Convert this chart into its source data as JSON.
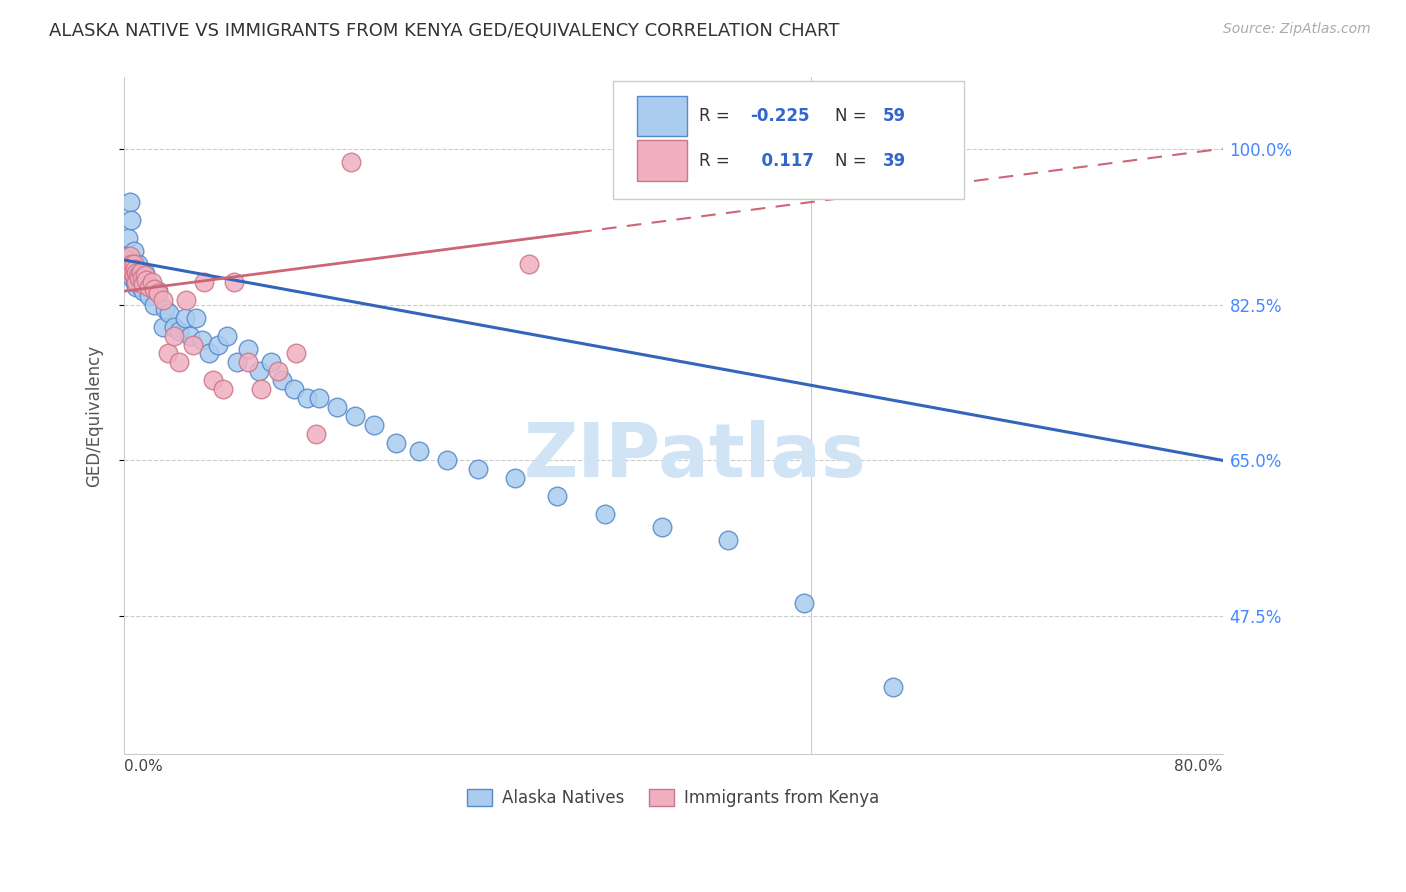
{
  "title": "ALASKA NATIVE VS IMMIGRANTS FROM KENYA GED/EQUIVALENCY CORRELATION CHART",
  "source": "Source: ZipAtlas.com",
  "ylabel": "GED/Equivalency",
  "xlim": [
    0.0,
    0.8
  ],
  "ylim": [
    0.32,
    1.08
  ],
  "ytick_vals": [
    0.475,
    0.65,
    0.825,
    1.0
  ],
  "ytick_labels": [
    "47.5%",
    "65.0%",
    "82.5%",
    "100.0%"
  ],
  "legend_r_blue": "-0.225",
  "legend_n_blue": "59",
  "legend_r_pink": "0.117",
  "legend_n_pink": "39",
  "blue_scatter_color": "#aaccee",
  "blue_edge_color": "#5588cc",
  "blue_line_color": "#3366bb",
  "pink_scatter_color": "#f0b0c0",
  "pink_edge_color": "#cc7788",
  "pink_line_color": "#cc6677",
  "watermark_color": "#d0e4f5",
  "grid_color": "#cccccc",
  "blue_trend_x0": 0.0,
  "blue_trend_y0": 0.875,
  "blue_trend_x1": 0.8,
  "blue_trend_y1": 0.65,
  "pink_trend_x0": 0.0,
  "pink_trend_y0": 0.84,
  "pink_trend_x1": 0.8,
  "pink_trend_y1": 1.0,
  "alaska_x": [
    0.002,
    0.003,
    0.004,
    0.005,
    0.005,
    0.006,
    0.006,
    0.007,
    0.007,
    0.008,
    0.008,
    0.009,
    0.009,
    0.01,
    0.01,
    0.011,
    0.012,
    0.013,
    0.014,
    0.015,
    0.016,
    0.018,
    0.02,
    0.022,
    0.025,
    0.028,
    0.03,
    0.033,
    0.036,
    0.04,
    0.044,
    0.048,
    0.052,
    0.057,
    0.062,
    0.068,
    0.075,
    0.082,
    0.09,
    0.098,
    0.107,
    0.115,
    0.124,
    0.133,
    0.142,
    0.155,
    0.168,
    0.182,
    0.198,
    0.215,
    0.235,
    0.258,
    0.285,
    0.315,
    0.35,
    0.392,
    0.44,
    0.495,
    0.56
  ],
  "alaska_y": [
    0.88,
    0.9,
    0.94,
    0.87,
    0.92,
    0.875,
    0.855,
    0.885,
    0.865,
    0.87,
    0.85,
    0.86,
    0.845,
    0.87,
    0.855,
    0.858,
    0.845,
    0.855,
    0.84,
    0.86,
    0.85,
    0.835,
    0.845,
    0.825,
    0.84,
    0.8,
    0.82,
    0.815,
    0.8,
    0.795,
    0.81,
    0.79,
    0.81,
    0.785,
    0.77,
    0.78,
    0.79,
    0.76,
    0.775,
    0.75,
    0.76,
    0.74,
    0.73,
    0.72,
    0.72,
    0.71,
    0.7,
    0.69,
    0.67,
    0.66,
    0.65,
    0.64,
    0.63,
    0.61,
    0.59,
    0.575,
    0.56,
    0.49,
    0.395
  ],
  "kenya_x": [
    0.002,
    0.003,
    0.004,
    0.005,
    0.005,
    0.006,
    0.007,
    0.007,
    0.008,
    0.009,
    0.009,
    0.01,
    0.011,
    0.012,
    0.013,
    0.014,
    0.015,
    0.016,
    0.018,
    0.02,
    0.022,
    0.025,
    0.028,
    0.032,
    0.036,
    0.04,
    0.045,
    0.05,
    0.058,
    0.065,
    0.072,
    0.08,
    0.09,
    0.1,
    0.112,
    0.125,
    0.14,
    0.165,
    0.295
  ],
  "kenya_y": [
    0.87,
    0.875,
    0.88,
    0.865,
    0.87,
    0.86,
    0.87,
    0.858,
    0.865,
    0.86,
    0.85,
    0.858,
    0.855,
    0.862,
    0.855,
    0.848,
    0.858,
    0.852,
    0.845,
    0.85,
    0.842,
    0.838,
    0.83,
    0.77,
    0.79,
    0.76,
    0.83,
    0.78,
    0.85,
    0.74,
    0.73,
    0.85,
    0.76,
    0.73,
    0.75,
    0.77,
    0.68,
    0.985,
    0.87
  ]
}
